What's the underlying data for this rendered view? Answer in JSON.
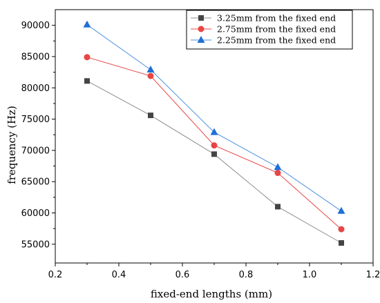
{
  "chart_data": {
    "type": "line",
    "title": "",
    "xlabel": "fixed-end lengths (mm)",
    "ylabel": "frequency (Hz)",
    "xlim": [
      0.2,
      1.2
    ],
    "ylim": [
      52000,
      92500
    ],
    "x_ticks": [
      0.2,
      0.4,
      0.6,
      0.8,
      1.0,
      1.2
    ],
    "x_tick_labels": [
      "0.2",
      "0.4",
      "0.6",
      "0.8",
      "1.0",
      "1.2"
    ],
    "y_ticks": [
      55000,
      60000,
      65000,
      70000,
      75000,
      80000,
      85000,
      90000
    ],
    "y_tick_labels": [
      "55000",
      "60000",
      "65000",
      "70000",
      "75000",
      "80000",
      "85000",
      "90000"
    ],
    "grid": false,
    "legend_position": "top-right",
    "x": [
      0.3,
      0.5,
      0.7,
      0.9,
      1.1
    ],
    "series": [
      {
        "name": "3.25mm from the fixed end",
        "marker": "square",
        "color": "#444444",
        "line_color": "#8c8c8c",
        "values": [
          81100,
          75600,
          69400,
          61000,
          55200
        ]
      },
      {
        "name": "2.75mm from the fixed end",
        "marker": "circle",
        "color": "#e84545",
        "line_color": "#e84545",
        "values": [
          84900,
          81900,
          70800,
          66400,
          57400
        ]
      },
      {
        "name": "2.25mm from the fixed end",
        "marker": "triangle",
        "color": "#1f6fd6",
        "line_color": "#4a90e2",
        "values": [
          90100,
          82900,
          72900,
          67300,
          60300
        ]
      }
    ]
  }
}
